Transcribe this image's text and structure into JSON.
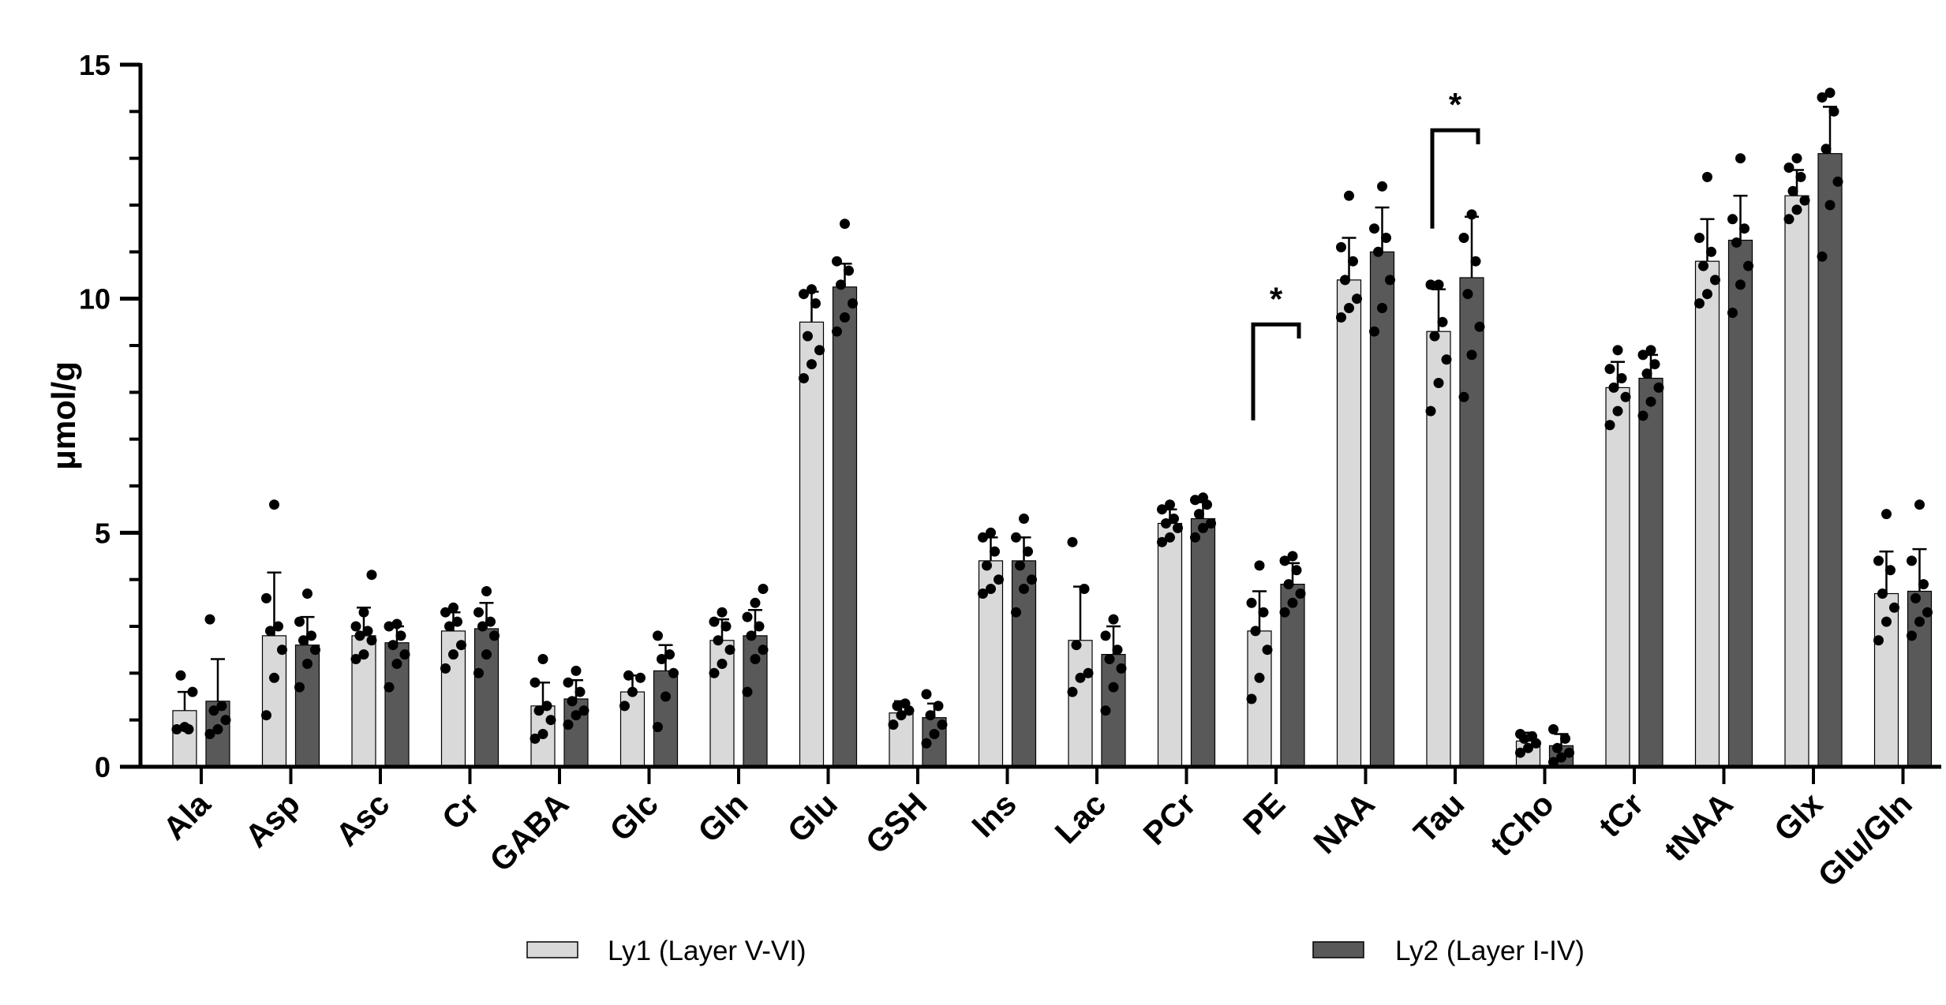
{
  "chart_data": {
    "type": "bar",
    "title": "",
    "xlabel": "",
    "ylabel": "μmol/g",
    "ylim": [
      0,
      15
    ],
    "yticks": [
      0,
      5,
      10,
      15
    ],
    "ytick_labels": [
      "0",
      "5",
      "10",
      "15"
    ],
    "grid": false,
    "legend_position": "bottom",
    "categories": [
      "Ala",
      "Asp",
      "Asc",
      "Cr",
      "GABA",
      "Glc",
      "Gln",
      "Glu",
      "GSH",
      "Ins",
      "Lac",
      "PCr",
      "PE",
      "NAA",
      "Tau",
      "tCho",
      "tCr",
      "tNAA",
      "Glx",
      "Glu/Gln"
    ],
    "series": [
      {
        "name": "Ly1 (Layer V-VI)",
        "color": "#d9d9d9",
        "values": [
          1.2,
          2.8,
          2.8,
          2.9,
          1.3,
          1.6,
          2.7,
          9.5,
          1.15,
          4.4,
          2.7,
          5.2,
          2.9,
          10.4,
          9.3,
          0.55,
          8.1,
          10.8,
          12.2,
          3.7
        ],
        "errors": [
          0.4,
          1.35,
          0.6,
          0.4,
          0.5,
          0.35,
          0.45,
          0.65,
          0.25,
          0.5,
          1.15,
          0.3,
          0.85,
          0.9,
          0.9,
          0.18,
          0.55,
          0.9,
          0.55,
          0.9
        ],
        "points": [
          [
            0.8,
            0.85,
            1.6,
            1.95,
            0.8
          ],
          [
            1.1,
            1.9,
            2.5,
            2.9,
            3.0,
            3.6,
            5.6
          ],
          [
            2.3,
            2.4,
            2.7,
            2.8,
            2.9,
            3.0,
            3.3,
            4.1
          ],
          [
            2.1,
            2.4,
            2.6,
            3.0,
            3.1,
            3.3,
            3.4
          ],
          [
            0.6,
            0.7,
            1.0,
            1.2,
            1.3,
            1.8,
            2.3
          ],
          [
            1.3,
            1.6,
            1.9,
            1.95
          ],
          [
            2.0,
            2.2,
            2.5,
            2.7,
            3.0,
            3.1,
            3.3
          ],
          [
            8.3,
            8.6,
            8.9,
            9.2,
            9.9,
            10.1,
            10.2
          ],
          [
            0.9,
            1.1,
            1.2,
            1.3,
            1.35
          ],
          [
            3.7,
            3.8,
            4.0,
            4.3,
            4.6,
            4.9,
            5.0
          ],
          [
            1.6,
            1.9,
            2.0,
            2.6,
            3.8,
            4.8
          ],
          [
            4.8,
            4.9,
            5.1,
            5.2,
            5.3,
            5.5,
            5.6
          ],
          [
            1.45,
            1.9,
            2.5,
            2.9,
            3.3,
            3.5,
            4.3
          ],
          [
            9.6,
            9.8,
            10.0,
            10.4,
            10.8,
            11.1,
            12.2
          ],
          [
            7.6,
            8.2,
            8.7,
            9.2,
            9.5,
            10.3,
            10.3
          ],
          [
            0.3,
            0.4,
            0.5,
            0.6,
            0.65,
            0.7
          ],
          [
            7.3,
            7.6,
            7.9,
            8.1,
            8.3,
            8.5,
            8.9
          ],
          [
            9.9,
            10.1,
            10.4,
            10.7,
            11.0,
            11.3,
            12.6
          ],
          [
            11.7,
            11.9,
            12.1,
            12.3,
            12.6,
            12.8,
            13.0
          ],
          [
            2.7,
            3.1,
            3.4,
            3.7,
            4.2,
            4.4,
            5.4
          ]
        ]
      },
      {
        "name": "Ly2 (Layer I-IV)",
        "color": "#595959",
        "values": [
          1.4,
          2.6,
          2.65,
          2.95,
          1.45,
          2.05,
          2.8,
          10.25,
          1.05,
          4.4,
          2.4,
          5.3,
          3.9,
          11.0,
          10.45,
          0.45,
          8.3,
          11.25,
          13.1,
          3.75
        ],
        "errors": [
          0.9,
          0.6,
          0.35,
          0.55,
          0.4,
          0.55,
          0.55,
          0.5,
          0.3,
          0.5,
          0.6,
          0.35,
          0.45,
          0.95,
          1.3,
          0.25,
          0.5,
          0.95,
          1.0,
          0.9
        ],
        "points": [
          [
            0.7,
            0.8,
            1.0,
            1.2,
            1.3,
            3.15
          ],
          [
            1.7,
            2.2,
            2.5,
            2.7,
            2.8,
            3.1,
            3.7
          ],
          [
            1.7,
            2.2,
            2.4,
            2.6,
            2.8,
            3.0,
            3.05
          ],
          [
            2.0,
            2.4,
            2.8,
            3.0,
            3.1,
            3.3,
            3.75
          ],
          [
            0.9,
            1.1,
            1.2,
            1.4,
            1.6,
            1.8,
            2.05
          ],
          [
            0.85,
            1.5,
            2.0,
            2.3,
            2.4,
            2.8
          ],
          [
            1.6,
            2.3,
            2.5,
            2.8,
            3.0,
            3.2,
            3.5,
            3.8
          ],
          [
            9.3,
            9.6,
            9.9,
            10.3,
            10.6,
            10.8,
            11.6
          ],
          [
            0.5,
            0.7,
            0.9,
            1.1,
            1.3,
            1.55
          ],
          [
            3.3,
            3.8,
            4.0,
            4.3,
            4.6,
            4.9,
            5.3
          ],
          [
            1.2,
            1.7,
            2.1,
            2.3,
            2.5,
            2.8,
            3.15
          ],
          [
            4.9,
            5.1,
            5.2,
            5.4,
            5.6,
            5.7,
            5.75
          ],
          [
            3.3,
            3.5,
            3.7,
            3.9,
            4.2,
            4.4,
            4.5
          ],
          [
            9.3,
            9.8,
            10.4,
            11.0,
            11.3,
            11.5,
            12.4
          ],
          [
            7.9,
            8.8,
            9.4,
            10.1,
            10.8,
            11.3,
            11.8
          ],
          [
            0.1,
            0.2,
            0.3,
            0.4,
            0.6,
            0.8
          ],
          [
            7.5,
            7.8,
            8.1,
            8.4,
            8.6,
            8.8,
            8.9
          ],
          [
            9.7,
            10.3,
            10.7,
            11.2,
            11.5,
            11.7,
            13.0
          ],
          [
            10.9,
            12.0,
            12.5,
            13.2,
            14.0,
            14.3,
            14.4
          ],
          [
            2.8,
            3.1,
            3.3,
            3.6,
            3.9,
            4.4,
            5.6
          ]
        ]
      }
    ],
    "annotations": [
      {
        "text": "*",
        "category": "PE",
        "bracket_y_data": 9.45,
        "bracket_bottom_data": 7.4,
        "bracket_right_bottom_data": 9.15
      },
      {
        "text": "*",
        "category": "Tau",
        "bracket_y_data": 13.6,
        "bracket_bottom_data": 11.5,
        "bracket_right_bottom_data": 13.3
      }
    ]
  }
}
